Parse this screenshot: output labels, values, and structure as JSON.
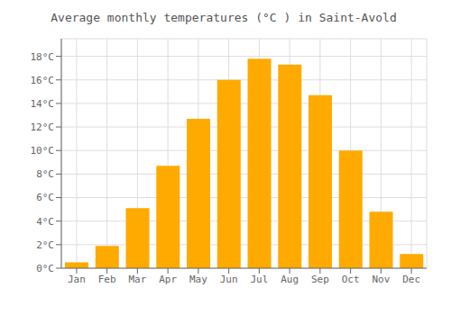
{
  "chart_data": {
    "type": "bar",
    "title": "Average monthly temperatures (°C ) in Saint-Avold",
    "categories": [
      "Jan",
      "Feb",
      "Mar",
      "Apr",
      "May",
      "Jun",
      "Jul",
      "Aug",
      "Sep",
      "Oct",
      "Nov",
      "Dec"
    ],
    "values": [
      0.5,
      1.9,
      5.1,
      8.7,
      12.7,
      16.0,
      17.8,
      17.3,
      14.7,
      10.0,
      4.8,
      1.2
    ],
    "color": "#FFAA00",
    "ylim": [
      0,
      19.5
    ],
    "yticks": [
      {
        "value": 0,
        "label": "0°C"
      },
      {
        "value": 2,
        "label": "2°C"
      },
      {
        "value": 4,
        "label": "4°C"
      },
      {
        "value": 6,
        "label": "6°C"
      },
      {
        "value": 8,
        "label": "8°C"
      },
      {
        "value": 10,
        "label": "10°C"
      },
      {
        "value": 12,
        "label": "12°C"
      },
      {
        "value": 14,
        "label": "14°C"
      },
      {
        "value": 16,
        "label": "16°C"
      },
      {
        "value": 18,
        "label": "18°C"
      }
    ],
    "grid": true
  }
}
